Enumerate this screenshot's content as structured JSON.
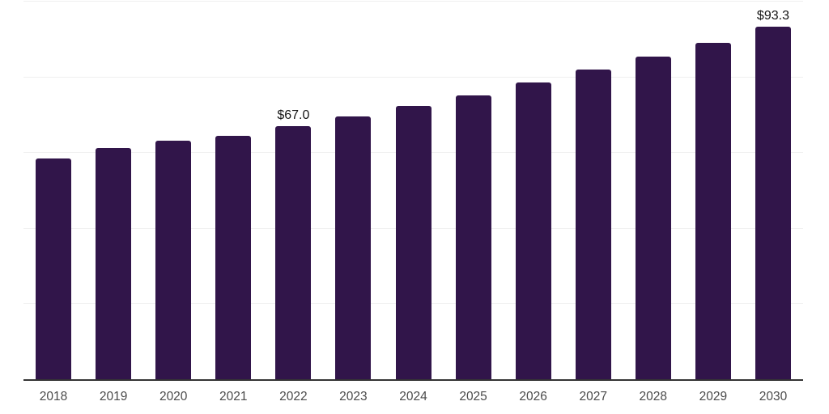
{
  "chart_data": {
    "type": "bar",
    "title": "",
    "xlabel": "",
    "ylabel": "",
    "categories": [
      "2018",
      "2019",
      "2020",
      "2021",
      "2022",
      "2023",
      "2024",
      "2025",
      "2026",
      "2027",
      "2028",
      "2029",
      "2030"
    ],
    "values": [
      58.6,
      61.3,
      63.2,
      64.5,
      67.0,
      69.7,
      72.4,
      75.3,
      78.7,
      82.0,
      85.5,
      89.2,
      93.3
    ],
    "data_labels": [
      {
        "index": 4,
        "text": "$67.0"
      },
      {
        "index": 12,
        "text": "$93.3"
      }
    ],
    "ylim": [
      0,
      100
    ],
    "gridline_values": [
      20,
      40,
      60,
      80,
      100
    ],
    "grid": true,
    "legend_position": "none",
    "colors": {
      "bar": "#31154a",
      "axis_line": "#343434",
      "gridline": "#f0f0f0",
      "tick_label": "#4a4a4a",
      "data_label": "#141414",
      "background": "#ffffff"
    }
  }
}
